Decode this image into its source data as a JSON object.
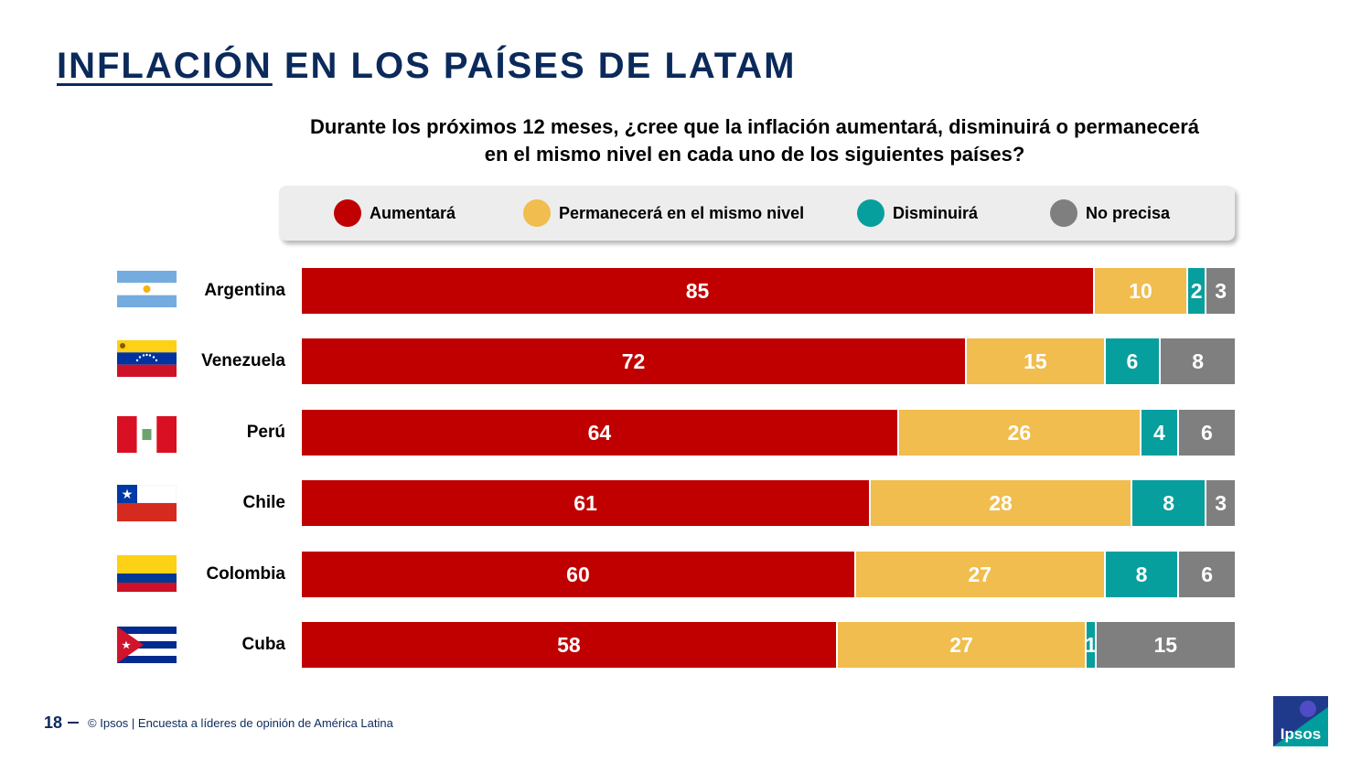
{
  "title": {
    "underlined": "INFLACIÓN",
    "rest": " EN LOS PAÍSES DE LATAM"
  },
  "question": "Durante los próximos 12 meses, ¿cree que la inflación aumentará, disminuirá o permanecerá en el mismo nivel en cada uno de los siguientes países?",
  "footer": {
    "page": "18",
    "text": "© Ipsos | Encuesta a líderes de opinión de América Latina"
  },
  "logo_text": "Ipsos",
  "colors": {
    "aumentara": "#c00000",
    "permanecera": "#f0bd4e",
    "disminuira": "#079e9e",
    "no_precisa": "#7f7f7f",
    "title": "#0b2a5b"
  },
  "chart_data": {
    "type": "bar",
    "orientation": "horizontal",
    "stacked": "100%",
    "categories": [
      "Argentina",
      "Venezuela",
      "Perú",
      "Chile",
      "Colombia",
      "Cuba"
    ],
    "series": [
      {
        "name": "Aumentará",
        "values": [
          85,
          72,
          64,
          61,
          60,
          58
        ]
      },
      {
        "name": "Permanecerá en el mismo nivel",
        "values": [
          10,
          15,
          26,
          28,
          27,
          27
        ]
      },
      {
        "name": "Disminuirá",
        "values": [
          2,
          6,
          4,
          8,
          8,
          1
        ]
      },
      {
        "name": "No precisa",
        "values": [
          3,
          8,
          6,
          3,
          6,
          15
        ]
      }
    ],
    "legend": "top",
    "grid": false
  }
}
